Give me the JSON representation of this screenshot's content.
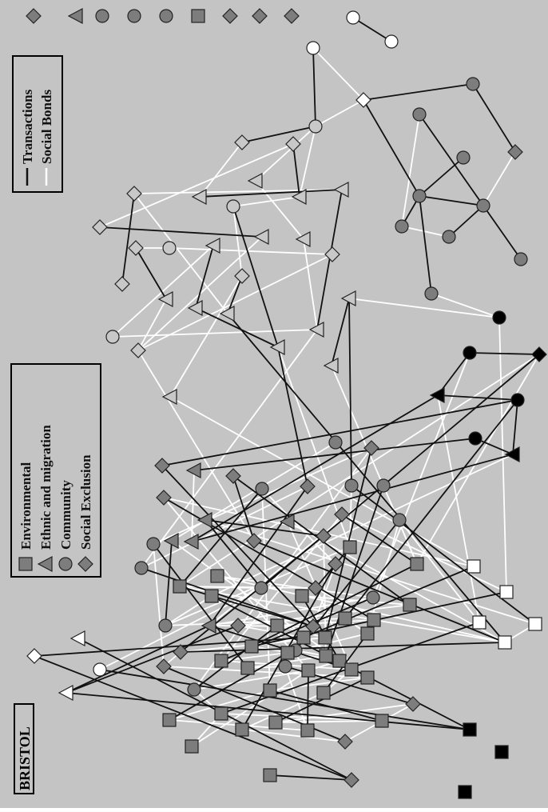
{
  "title": "BRISTOL",
  "legend_categories": {
    "items": [
      {
        "label": "Environmental",
        "shape": "square"
      },
      {
        "label": "Ethnic and migration",
        "shape": "triangle"
      },
      {
        "label": "Community",
        "shape": "circle"
      },
      {
        "label": "Social Exclusion",
        "shape": "diamond"
      }
    ]
  },
  "legend_edges": {
    "items": [
      {
        "label": "Transactions",
        "color": "#111111"
      },
      {
        "label": "Social Bonds",
        "color": "#ffffff"
      }
    ]
  },
  "colors": {
    "background": "#c4c4c4",
    "node_fill": "#7d7d7d",
    "node_light": "#c8c8c8",
    "node_white": "#ffffff",
    "node_black": "#000000",
    "transaction_edge": "#111111",
    "social_bond_edge": "#ffffff"
  }
}
